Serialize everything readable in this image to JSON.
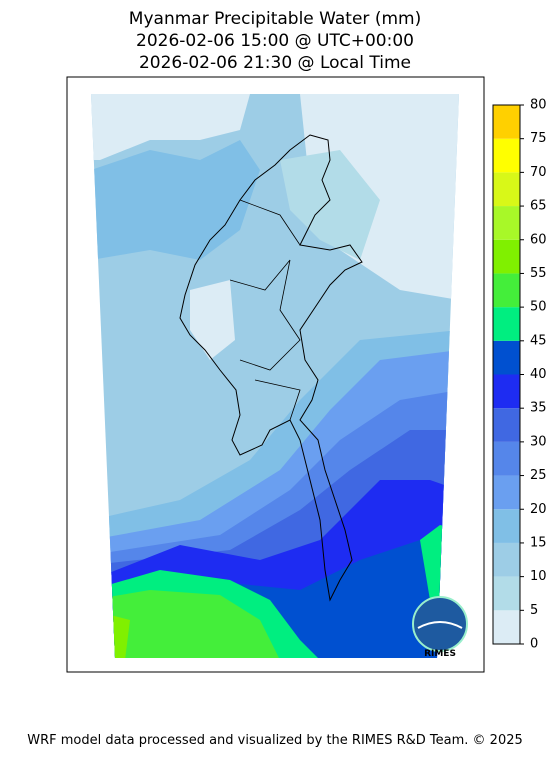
{
  "title": [
    "Myanmar Precipitable Water (mm)",
    "2026-02-06 15:00 @ UTC+00:00",
    "2026-02-06 21:30 @ Local Time"
  ],
  "colorbar": {
    "ticks": [
      0,
      5,
      10,
      15,
      20,
      25,
      30,
      35,
      40,
      45,
      50,
      55,
      60,
      65,
      70,
      75,
      80
    ],
    "colors": [
      "#dcecf5",
      "#b2dce8",
      "#9dcde6",
      "#80bfe6",
      "#6a9ff0",
      "#5586ea",
      "#4068e2",
      "#1e2cf2",
      "#0050d0",
      "#00ee80",
      "#44ee3a",
      "#80f000",
      "#a8f828",
      "#d8f818",
      "#ffff00",
      "#ffd000"
    ]
  },
  "logo": "RIMES",
  "footer": "WRF model data processed and visualized by the RIMES R&D Team. © 2025"
}
